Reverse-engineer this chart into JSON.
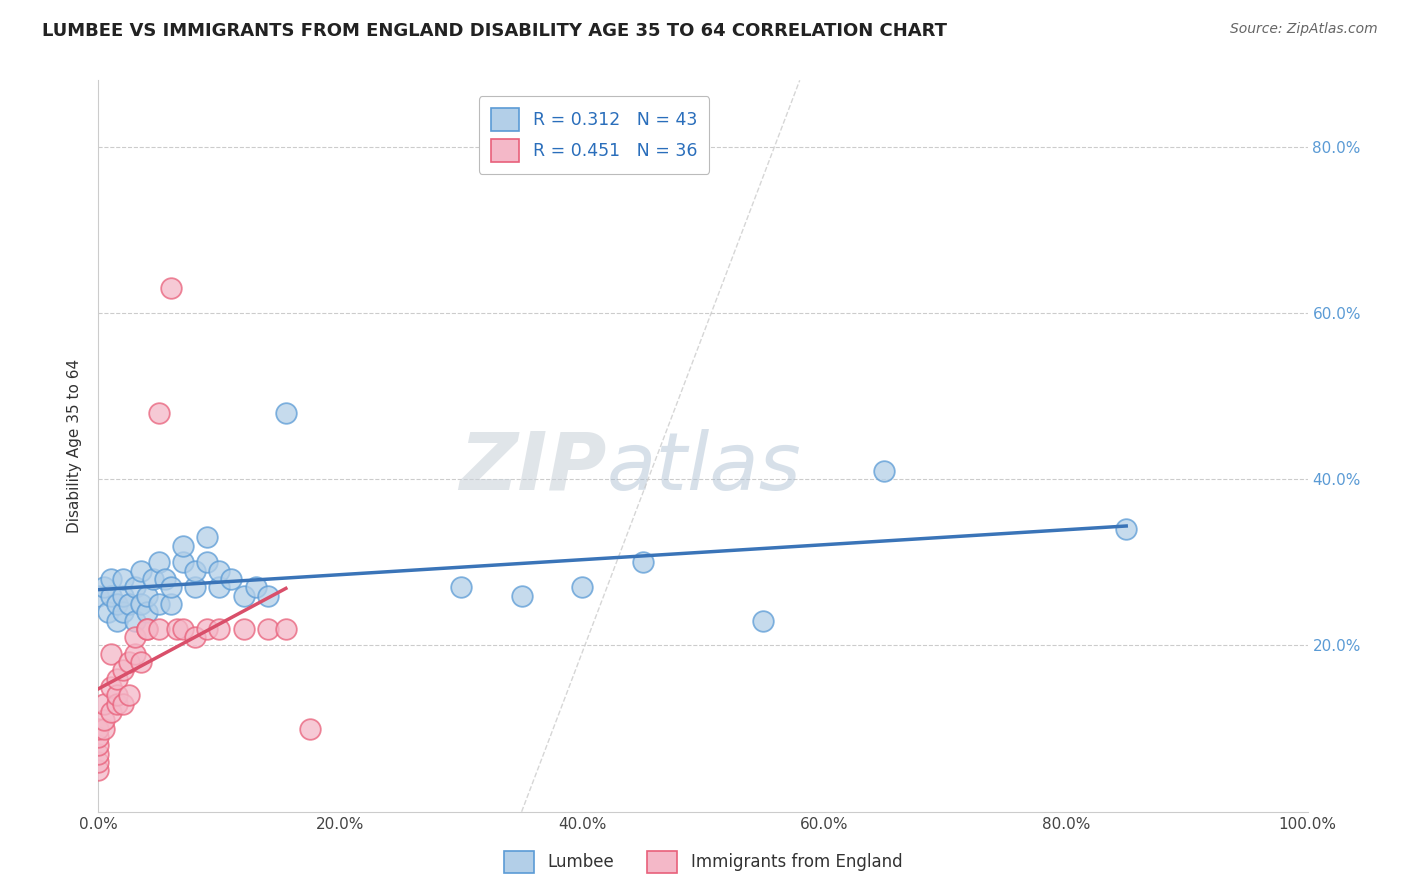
{
  "title": "LUMBEE VS IMMIGRANTS FROM ENGLAND DISABILITY AGE 35 TO 64 CORRELATION CHART",
  "source": "Source: ZipAtlas.com",
  "ylabel": "Disability Age 35 to 64",
  "xlim": [
    0.0,
    1.0
  ],
  "ylim": [
    0.0,
    0.88
  ],
  "xticks": [
    0.0,
    0.2,
    0.4,
    0.6,
    0.8,
    1.0
  ],
  "xticklabels": [
    "0.0%",
    "20.0%",
    "40.0%",
    "60.0%",
    "80.0%",
    "100.0%"
  ],
  "yticks_right": [
    0.2,
    0.4,
    0.6,
    0.8
  ],
  "yticklabels_right": [
    "20.0%",
    "40.0%",
    "60.0%",
    "80.0%"
  ],
  "lumbee_R": 0.312,
  "lumbee_N": 43,
  "england_R": 0.451,
  "england_N": 36,
  "lumbee_color": "#b3cfe8",
  "england_color": "#f4b8c8",
  "lumbee_edge_color": "#5b9bd5",
  "england_edge_color": "#e8607a",
  "lumbee_line_color": "#3a74b8",
  "england_line_color": "#d94f6a",
  "lumbee_x": [
    0.0,
    0.005,
    0.008,
    0.01,
    0.01,
    0.015,
    0.015,
    0.02,
    0.02,
    0.02,
    0.025,
    0.03,
    0.03,
    0.035,
    0.035,
    0.04,
    0.04,
    0.045,
    0.05,
    0.05,
    0.055,
    0.06,
    0.06,
    0.07,
    0.07,
    0.08,
    0.08,
    0.09,
    0.09,
    0.1,
    0.1,
    0.11,
    0.12,
    0.13,
    0.14,
    0.155,
    0.3,
    0.35,
    0.4,
    0.45,
    0.55,
    0.65,
    0.85
  ],
  "lumbee_y": [
    0.26,
    0.27,
    0.24,
    0.26,
    0.28,
    0.23,
    0.25,
    0.24,
    0.26,
    0.28,
    0.25,
    0.23,
    0.27,
    0.25,
    0.29,
    0.24,
    0.26,
    0.28,
    0.25,
    0.3,
    0.28,
    0.25,
    0.27,
    0.3,
    0.32,
    0.27,
    0.29,
    0.3,
    0.33,
    0.27,
    0.29,
    0.28,
    0.26,
    0.27,
    0.26,
    0.48,
    0.27,
    0.26,
    0.27,
    0.3,
    0.23,
    0.41,
    0.34
  ],
  "england_x": [
    0.0,
    0.0,
    0.0,
    0.0,
    0.0,
    0.0,
    0.005,
    0.005,
    0.005,
    0.01,
    0.01,
    0.01,
    0.015,
    0.015,
    0.015,
    0.02,
    0.02,
    0.025,
    0.025,
    0.03,
    0.03,
    0.035,
    0.04,
    0.04,
    0.05,
    0.05,
    0.06,
    0.065,
    0.07,
    0.08,
    0.09,
    0.1,
    0.12,
    0.14,
    0.155,
    0.175
  ],
  "england_y": [
    0.05,
    0.06,
    0.07,
    0.08,
    0.09,
    0.1,
    0.1,
    0.11,
    0.13,
    0.12,
    0.15,
    0.19,
    0.13,
    0.14,
    0.16,
    0.13,
    0.17,
    0.14,
    0.18,
    0.19,
    0.21,
    0.18,
    0.22,
    0.22,
    0.22,
    0.48,
    0.63,
    0.22,
    0.22,
    0.21,
    0.22,
    0.22,
    0.22,
    0.22,
    0.22,
    0.1
  ],
  "diagonal_line": [
    [
      0.35,
      0.0
    ],
    [
      0.55,
      1.0
    ]
  ],
  "watermark_text": "ZIPatlas",
  "background_color": "#ffffff",
  "grid_color": "#cccccc",
  "tick_color": "#5b9bd5",
  "axis_color": "#cccccc"
}
